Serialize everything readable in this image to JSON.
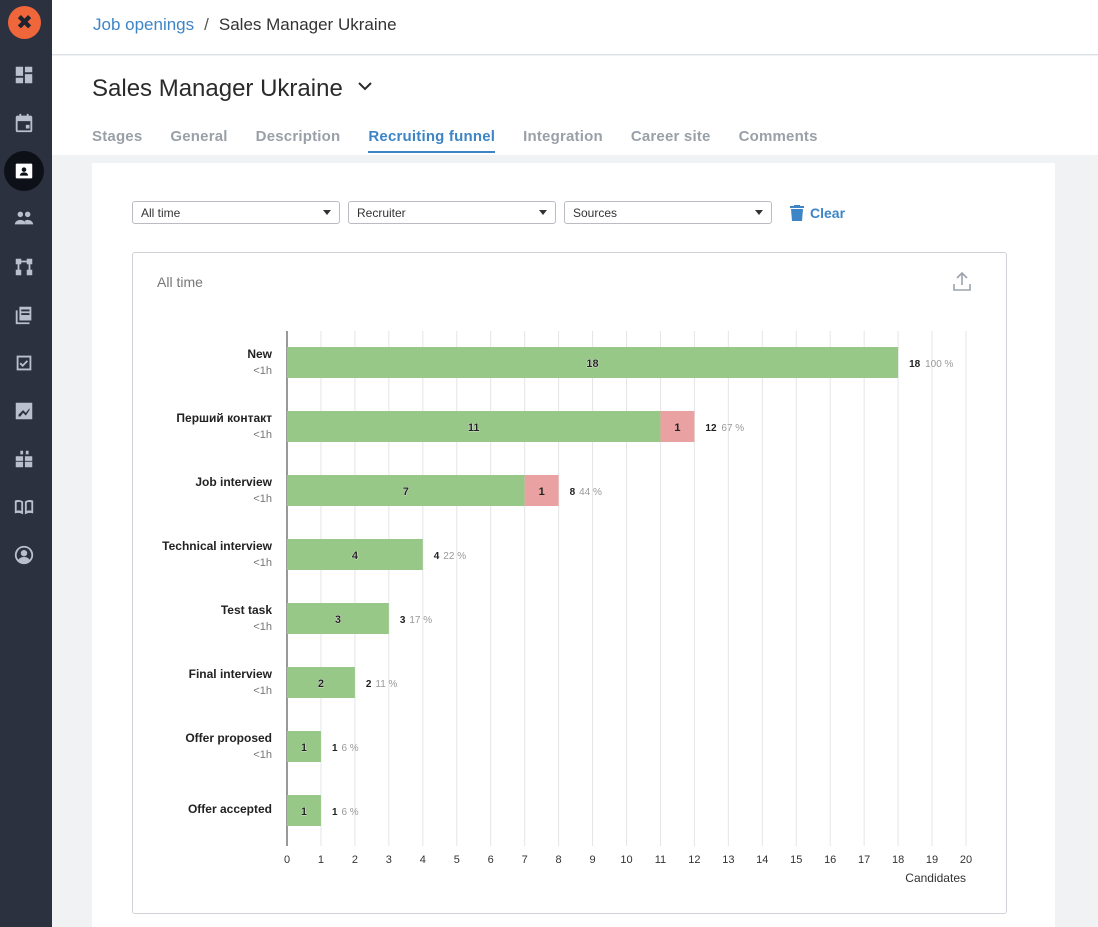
{
  "sidebar": {
    "logo": "✖",
    "items": [
      {
        "icon": "dashboard-icon"
      },
      {
        "icon": "calendar-icon"
      },
      {
        "icon": "job-openings-icon",
        "active": true
      },
      {
        "icon": "candidates-icon"
      },
      {
        "icon": "workflow-icon"
      },
      {
        "icon": "library-icon"
      },
      {
        "icon": "tasks-icon"
      },
      {
        "icon": "reports-icon"
      },
      {
        "icon": "integrations-icon"
      },
      {
        "icon": "knowledge-base-icon"
      },
      {
        "icon": "profile-icon"
      }
    ]
  },
  "breadcrumb": {
    "link": "Job openings",
    "separator": "/",
    "current": "Sales Manager Ukraine"
  },
  "page": {
    "title": "Sales Manager Ukraine"
  },
  "tabs": [
    {
      "label": "Stages"
    },
    {
      "label": "General"
    },
    {
      "label": "Description"
    },
    {
      "label": "Recruiting funnel",
      "active": true
    },
    {
      "label": "Integration"
    },
    {
      "label": "Career site"
    },
    {
      "label": "Comments"
    }
  ],
  "filters": {
    "period": "All time",
    "recruiter": "Recruiter",
    "sources": "Sources",
    "clear_label": "Clear"
  },
  "chart_title": "All time",
  "colors": {
    "green": "#98c887",
    "red": "#e9a1a1",
    "accent": "#3d85c6"
  },
  "chart_data": {
    "type": "bar",
    "orientation": "horizontal",
    "stacked": true,
    "xlabel": "Candidates",
    "xlim": [
      0,
      20
    ],
    "x_ticks": [
      0,
      1,
      2,
      3,
      4,
      5,
      6,
      7,
      8,
      9,
      10,
      11,
      12,
      13,
      14,
      15,
      16,
      17,
      18,
      19,
      20
    ],
    "grid": true,
    "categories": [
      {
        "name": "New",
        "time": "<1h"
      },
      {
        "name": "Перший контакт",
        "time": "<1h"
      },
      {
        "name": "Job interview",
        "time": "<1h"
      },
      {
        "name": "Technical interview",
        "time": "<1h"
      },
      {
        "name": "Test task",
        "time": "<1h"
      },
      {
        "name": "Final interview",
        "time": "<1h"
      },
      {
        "name": "Offer proposed",
        "time": "<1h"
      },
      {
        "name": "Offer accepted",
        "time": ""
      }
    ],
    "series": [
      {
        "color": "#98c887",
        "values": [
          18,
          11,
          7,
          4,
          3,
          2,
          1,
          1
        ]
      },
      {
        "color": "#e9a1a1",
        "values": [
          0,
          1,
          1,
          0,
          0,
          0,
          0,
          0
        ]
      }
    ],
    "totals": [
      18,
      12,
      8,
      4,
      3,
      2,
      1,
      1
    ],
    "percents": [
      "100 %",
      "67 %",
      "44 %",
      "22 %",
      "17 %",
      "11 %",
      "6 %",
      "6 %"
    ]
  }
}
